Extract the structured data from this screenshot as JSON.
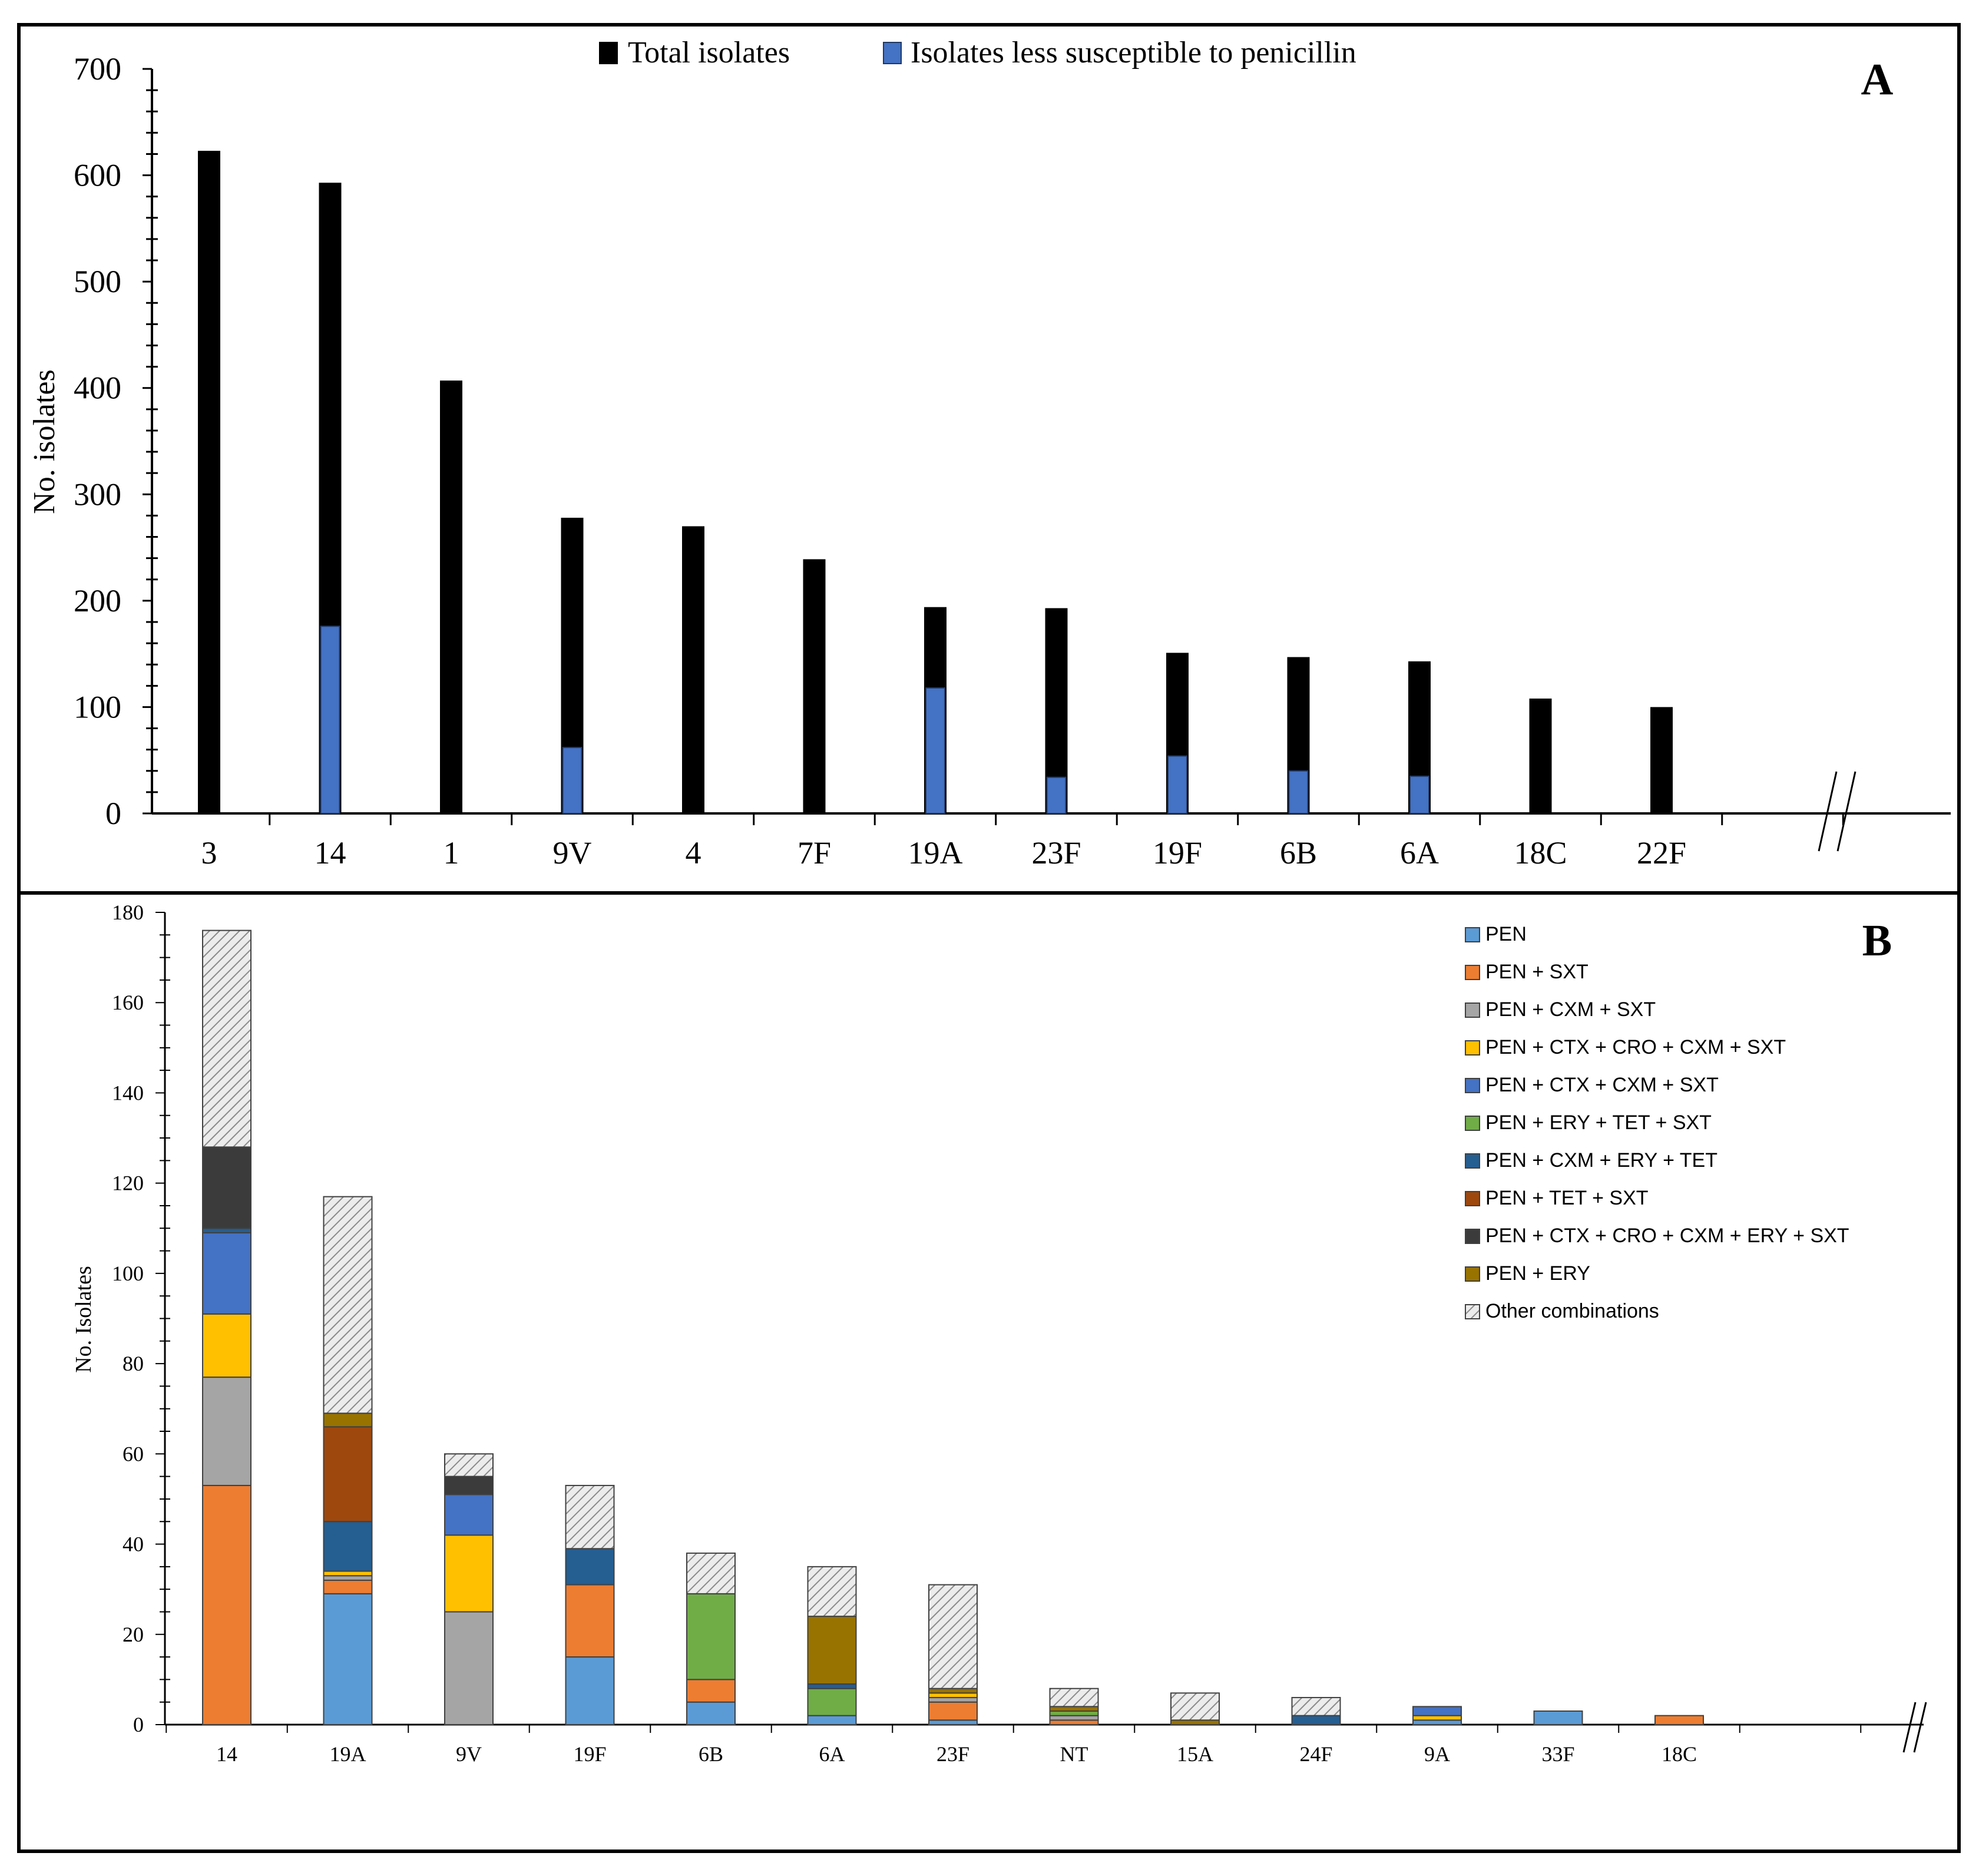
{
  "chart_data": [
    {
      "panel": "A",
      "type": "bar",
      "panel_label": "A",
      "ylabel": "No. isolates",
      "xlabel": "",
      "ylim": [
        0,
        700
      ],
      "yticks": [
        "0",
        "100",
        "200",
        "300",
        "400",
        "500",
        "600",
        "700"
      ],
      "axis_break": "//",
      "categories": [
        "3",
        "14",
        "1",
        "9V",
        "4",
        "7F",
        "19A",
        "23F",
        "19F",
        "6B",
        "6A",
        "18C",
        "22F"
      ],
      "series": [
        {
          "name": "Total isolates",
          "color": "#000000",
          "values": [
            623,
            593,
            407,
            278,
            270,
            239,
            194,
            193,
            151,
            147,
            143,
            108,
            100
          ]
        },
        {
          "name": "Isolates less susceptible to penicillin",
          "color": "#4472c4",
          "values": [
            0,
            176,
            0,
            62,
            0,
            0,
            118,
            34,
            54,
            40,
            35,
            0,
            0
          ]
        }
      ],
      "legend_position": "top-center"
    },
    {
      "panel": "B",
      "type": "bar",
      "stacked": true,
      "panel_label": "B",
      "ylabel": "No. Isolates",
      "xlabel": "",
      "ylim": [
        0,
        180
      ],
      "yticks": [
        "0",
        "20",
        "40",
        "60",
        "80",
        "100",
        "120",
        "140",
        "160",
        "180"
      ],
      "axis_break": "//",
      "categories": [
        "14",
        "19A",
        "9V",
        "19F",
        "6B",
        "6A",
        "23F",
        "NT",
        "15A",
        "24F",
        "9A",
        "33F",
        "18C"
      ],
      "series": [
        {
          "name": "PEN",
          "color": "#5b9bd5",
          "values": [
            0,
            29,
            0,
            15,
            5,
            2,
            1,
            0,
            0,
            0,
            1,
            3,
            0
          ]
        },
        {
          "name": "PEN + SXT",
          "color": "#ed7d31",
          "values": [
            53,
            3,
            0,
            16,
            5,
            0,
            4,
            1,
            0,
            0,
            0,
            0,
            2
          ]
        },
        {
          "name": "PEN + CXM + SXT",
          "color": "#a5a5a5",
          "values": [
            24,
            1,
            25,
            0,
            0,
            0,
            1,
            1,
            0,
            0,
            0,
            0,
            0
          ]
        },
        {
          "name": "PEN + CTX + CRO + CXM + SXT",
          "color": "#ffc000",
          "values": [
            14,
            1,
            17,
            0,
            0,
            0,
            1,
            0,
            0,
            0,
            1,
            0,
            0
          ]
        },
        {
          "name": "PEN + CTX + CXM + SXT",
          "color": "#4472c4",
          "values": [
            18,
            0,
            9,
            0,
            0,
            0,
            0,
            0,
            0,
            0,
            2,
            0,
            0
          ]
        },
        {
          "name": "PEN + ERY + TET + SXT",
          "color": "#70ad47",
          "values": [
            0,
            0,
            0,
            0,
            19,
            6,
            0,
            1,
            0,
            0,
            0,
            0,
            0
          ]
        },
        {
          "name": "PEN + CXM + ERY + TET",
          "color": "#255e91",
          "values": [
            1,
            11,
            0,
            8,
            0,
            1,
            0,
            0,
            0,
            2,
            0,
            0,
            0
          ]
        },
        {
          "name": "PEN + TET + SXT",
          "color": "#9e480e",
          "values": [
            0,
            21,
            0,
            0,
            0,
            0,
            0,
            0,
            0,
            0,
            0,
            0,
            0
          ]
        },
        {
          "name": "PEN + CTX + CRO + CXM + ERY  + SXT",
          "color": "#3b3b3b",
          "values": [
            18,
            0,
            4,
            0,
            0,
            0,
            0,
            0,
            0,
            0,
            0,
            0,
            0
          ]
        },
        {
          "name": "PEN + ERY",
          "color": "#997300",
          "values": [
            0,
            3,
            0,
            0,
            0,
            15,
            1,
            1,
            1,
            0,
            0,
            0,
            0
          ]
        },
        {
          "name": "Other combinations",
          "color": "#d0d0d0",
          "pattern": "diagonal-hatch",
          "values": [
            48,
            48,
            5,
            14,
            9,
            11,
            23,
            4,
            6,
            4,
            0,
            0,
            0
          ]
        }
      ],
      "legend_position": "top-right"
    }
  ]
}
